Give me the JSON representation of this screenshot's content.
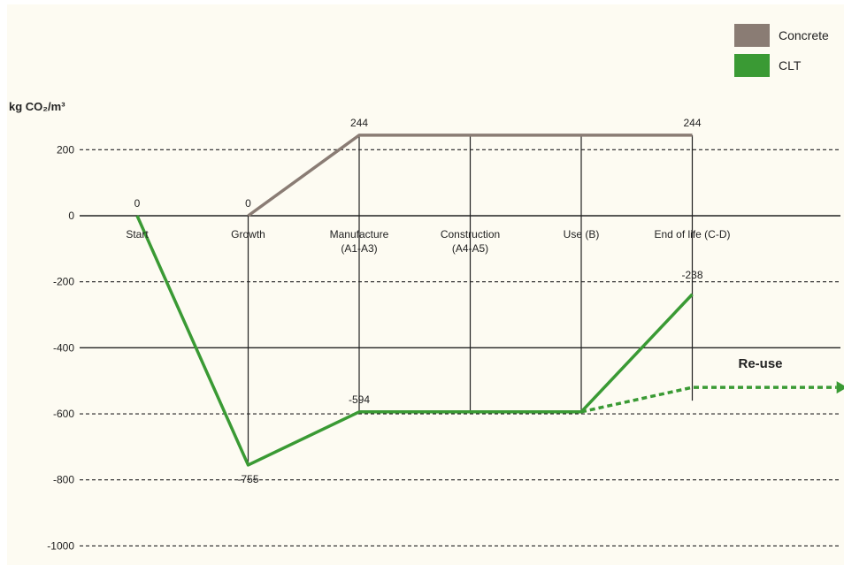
{
  "chart_data": {
    "type": "line",
    "ylabel": "kg CO₂/m³",
    "ylim": [
      -1000,
      244
    ],
    "yticks": [
      200,
      0,
      -200,
      -400,
      -600,
      -800,
      -1000
    ],
    "categories": [
      {
        "name": "Start",
        "sub": ""
      },
      {
        "name": "Growth",
        "sub": ""
      },
      {
        "name": "Manufacture",
        "sub": "(A1-A3)"
      },
      {
        "name": "Construction",
        "sub": "(A4-A5)"
      },
      {
        "name": "Use (B)",
        "sub": ""
      },
      {
        "name": "End of life (C-D)",
        "sub": ""
      }
    ],
    "series": [
      {
        "name": "Concrete",
        "color": "#8a7c74",
        "points": [
          [
            1,
            0
          ],
          [
            2,
            244
          ],
          [
            3,
            244
          ],
          [
            4,
            244
          ],
          [
            5,
            244
          ]
        ],
        "labels": [
          {
            "x": 1,
            "y": 0,
            "text": "0"
          },
          {
            "x": 2,
            "y": 244,
            "text": "244"
          },
          {
            "x": 5,
            "y": 244,
            "text": "244"
          }
        ]
      },
      {
        "name": "CLT",
        "color": "#3a9a34",
        "points": [
          [
            0,
            0
          ],
          [
            1,
            -755
          ],
          [
            2,
            -594
          ],
          [
            3,
            -594
          ],
          [
            4,
            -594
          ],
          [
            5,
            -238
          ]
        ],
        "labels": [
          {
            "x": 0,
            "y": 0,
            "text": "0"
          },
          {
            "x": 1,
            "y": -755,
            "text": "-755"
          },
          {
            "x": 2,
            "y": -594,
            "text": "-594"
          },
          {
            "x": 5,
            "y": -238,
            "text": "-238"
          }
        ]
      }
    ],
    "reuse": {
      "label": "Re-use",
      "points": [
        [
          4,
          -594
        ],
        [
          5,
          -520
        ],
        [
          6.3,
          -520
        ]
      ]
    },
    "legend": {
      "placement": "top-right",
      "items": [
        "Concrete",
        "CLT"
      ]
    }
  }
}
